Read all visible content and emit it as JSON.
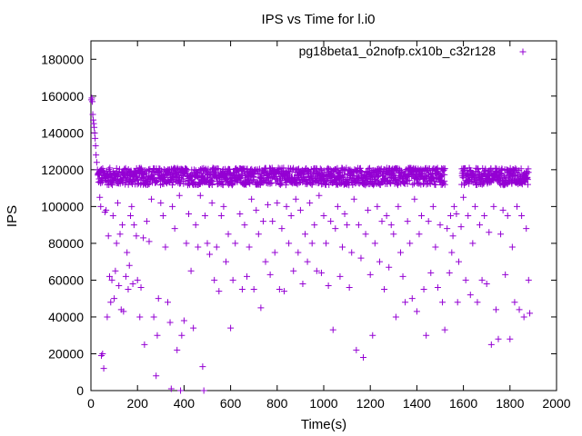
{
  "chart_data": {
    "type": "scatter",
    "title": "IPS vs Time for l.i0",
    "xlabel": "Time(s)",
    "ylabel": "IPS",
    "xlim": [
      0,
      2000
    ],
    "ylim": [
      0,
      190000
    ],
    "xticks": [
      0,
      200,
      400,
      600,
      800,
      1000,
      1200,
      1400,
      1600,
      1800,
      2000
    ],
    "yticks": [
      0,
      20000,
      40000,
      60000,
      80000,
      100000,
      120000,
      140000,
      160000,
      180000
    ],
    "grid": false,
    "legend_position": "top-right",
    "marker": "+",
    "series": [
      {
        "name": "pg18beta1_o2nofp.cx10b_c32r128",
        "color": "#9400d3",
        "points": [
          [
            2,
            158000
          ],
          [
            4,
            159000
          ],
          [
            6,
            157000
          ],
          [
            8,
            150000
          ],
          [
            10,
            147000
          ],
          [
            12,
            145000
          ],
          [
            14,
            143000
          ],
          [
            16,
            140000
          ],
          [
            18,
            137000
          ],
          [
            20,
            133000
          ],
          [
            22,
            128000
          ],
          [
            25,
            124000
          ],
          [
            28,
            120000
          ],
          [
            30,
            117000
          ],
          [
            35,
            115000
          ],
          [
            38,
            105000
          ],
          [
            42,
            100000
          ],
          [
            45,
            19000
          ],
          [
            50,
            20000
          ],
          [
            55,
            12000
          ],
          [
            60,
            97000
          ],
          [
            65,
            98000
          ],
          [
            70,
            40000
          ],
          [
            75,
            84000
          ],
          [
            80,
            62000
          ],
          [
            85,
            48000
          ],
          [
            90,
            60000
          ],
          [
            95,
            95000
          ],
          [
            100,
            50000
          ],
          [
            105,
            65000
          ],
          [
            110,
            80000
          ],
          [
            115,
            102000
          ],
          [
            120,
            57000
          ],
          [
            125,
            85000
          ],
          [
            130,
            44000
          ],
          [
            135,
            90000
          ],
          [
            140,
            43000
          ],
          [
            150,
            62000
          ],
          [
            155,
            75000
          ],
          [
            160,
            55000
          ],
          [
            165,
            68000
          ],
          [
            170,
            95000
          ],
          [
            175,
            100000
          ],
          [
            180,
            58000
          ],
          [
            185,
            90000
          ],
          [
            195,
            84000
          ],
          [
            200,
            60000
          ],
          [
            210,
            40000
          ],
          [
            215,
            56000
          ],
          [
            225,
            83000
          ],
          [
            230,
            25000
          ],
          [
            240,
            92000
          ],
          [
            250,
            81000
          ],
          [
            260,
            104000
          ],
          [
            270,
            40000
          ],
          [
            280,
            8000
          ],
          [
            285,
            30000
          ],
          [
            290,
            50000
          ],
          [
            300,
            102000
          ],
          [
            310,
            95000
          ],
          [
            320,
            78000
          ],
          [
            330,
            48000
          ],
          [
            340,
            37000
          ],
          [
            345,
            1000
          ],
          [
            350,
            100000
          ],
          [
            360,
            88000
          ],
          [
            370,
            22000
          ],
          [
            380,
            106000
          ],
          [
            385,
            0
          ],
          [
            390,
            30000
          ],
          [
            400,
            38000
          ],
          [
            410,
            80000
          ],
          [
            420,
            96000
          ],
          [
            430,
            65000
          ],
          [
            440,
            34000
          ],
          [
            450,
            90000
          ],
          [
            460,
            78000
          ],
          [
            470,
            106000
          ],
          [
            480,
            13000
          ],
          [
            485,
            0
          ],
          [
            490,
            95000
          ],
          [
            500,
            80000
          ],
          [
            510,
            74000
          ],
          [
            520,
            102000
          ],
          [
            530,
            60000
          ],
          [
            540,
            78000
          ],
          [
            550,
            54000
          ],
          [
            560,
            95000
          ],
          [
            570,
            100000
          ],
          [
            580,
            70000
          ],
          [
            590,
            85000
          ],
          [
            600,
            34000
          ],
          [
            610,
            60000
          ],
          [
            620,
            80000
          ],
          [
            640,
            96000
          ],
          [
            650,
            55000
          ],
          [
            660,
            90000
          ],
          [
            670,
            62000
          ],
          [
            680,
            78000
          ],
          [
            690,
            104000
          ],
          [
            700,
            55000
          ],
          [
            710,
            98000
          ],
          [
            720,
            85000
          ],
          [
            730,
            45000
          ],
          [
            740,
            92000
          ],
          [
            750,
            70000
          ],
          [
            760,
            101000
          ],
          [
            770,
            63000
          ],
          [
            780,
            92000
          ],
          [
            790,
            75000
          ],
          [
            800,
            102000
          ],
          [
            810,
            55000
          ],
          [
            820,
            88000
          ],
          [
            830,
            54000
          ],
          [
            840,
            100000
          ],
          [
            850,
            80000
          ],
          [
            860,
            95000
          ],
          [
            870,
            65000
          ],
          [
            880,
            104000
          ],
          [
            890,
            75000
          ],
          [
            900,
            98000
          ],
          [
            910,
            58000
          ],
          [
            920,
            85000
          ],
          [
            930,
            70000
          ],
          [
            940,
            102000
          ],
          [
            950,
            80000
          ],
          [
            960,
            90000
          ],
          [
            970,
            65000
          ],
          [
            980,
            106000
          ],
          [
            990,
            64000
          ],
          [
            1000,
            95000
          ],
          [
            1010,
            80000
          ],
          [
            1020,
            57000
          ],
          [
            1030,
            92000
          ],
          [
            1040,
            33000
          ],
          [
            1050,
            88000
          ],
          [
            1060,
            100000
          ],
          [
            1070,
            62000
          ],
          [
            1080,
            78000
          ],
          [
            1090,
            96000
          ],
          [
            1100,
            90000
          ],
          [
            1110,
            56000
          ],
          [
            1120,
            75000
          ],
          [
            1130,
            104000
          ],
          [
            1140,
            22000
          ],
          [
            1150,
            90000
          ],
          [
            1160,
            72000
          ],
          [
            1170,
            18000
          ],
          [
            1180,
            85000
          ],
          [
            1190,
            98000
          ],
          [
            1200,
            63000
          ],
          [
            1210,
            30000
          ],
          [
            1220,
            80000
          ],
          [
            1230,
            100000
          ],
          [
            1240,
            70000
          ],
          [
            1250,
            92000
          ],
          [
            1260,
            55000
          ],
          [
            1270,
            95000
          ],
          [
            1280,
            67000
          ],
          [
            1290,
            90000
          ],
          [
            1300,
            85000
          ],
          [
            1310,
            40000
          ],
          [
            1320,
            100000
          ],
          [
            1330,
            75000
          ],
          [
            1340,
            62000
          ],
          [
            1350,
            48000
          ],
          [
            1360,
            92000
          ],
          [
            1370,
            80000
          ],
          [
            1380,
            50000
          ],
          [
            1390,
            104000
          ],
          [
            1400,
            43000
          ],
          [
            1410,
            85000
          ],
          [
            1420,
            95000
          ],
          [
            1430,
            55000
          ],
          [
            1440,
            30000
          ],
          [
            1450,
            92000
          ],
          [
            1460,
            64000
          ],
          [
            1470,
            100000
          ],
          [
            1480,
            78000
          ],
          [
            1490,
            56000
          ],
          [
            1500,
            90000
          ],
          [
            1510,
            48000
          ],
          [
            1520,
            33000
          ],
          [
            1530,
            88000
          ],
          [
            1540,
            64000
          ],
          [
            1545,
            95000
          ],
          [
            1550,
            75000
          ],
          [
            1555,
            84000
          ],
          [
            1560,
            100000
          ],
          [
            1570,
            96000
          ],
          [
            1575,
            48000
          ],
          [
            1580,
            70000
          ],
          [
            1590,
            89000
          ],
          [
            1600,
            105000
          ],
          [
            1610,
            60000
          ],
          [
            1620,
            95000
          ],
          [
            1630,
            52000
          ],
          [
            1640,
            80000
          ],
          [
            1650,
            100000
          ],
          [
            1660,
            48000
          ],
          [
            1670,
            90000
          ],
          [
            1680,
            60000
          ],
          [
            1690,
            95000
          ],
          [
            1700,
            58000
          ],
          [
            1710,
            86000
          ],
          [
            1720,
            25000
          ],
          [
            1730,
            100000
          ],
          [
            1740,
            44000
          ],
          [
            1750,
            28000
          ],
          [
            1760,
            85000
          ],
          [
            1770,
            98000
          ],
          [
            1780,
            63000
          ],
          [
            1790,
            95000
          ],
          [
            1800,
            28000
          ],
          [
            1810,
            78000
          ],
          [
            1820,
            48000
          ],
          [
            1830,
            100000
          ],
          [
            1840,
            44000
          ],
          [
            1850,
            95000
          ],
          [
            1860,
            40000
          ],
          [
            1870,
            88000
          ],
          [
            1880,
            60000
          ],
          [
            1885,
            42000
          ]
        ]
      }
    ],
    "dense_band": {
      "series_index": 0,
      "x_start": 30,
      "x_end": 1880,
      "y_min": 104000,
      "y_max": 121000,
      "gap_x": [
        1520,
        1590
      ]
    }
  }
}
